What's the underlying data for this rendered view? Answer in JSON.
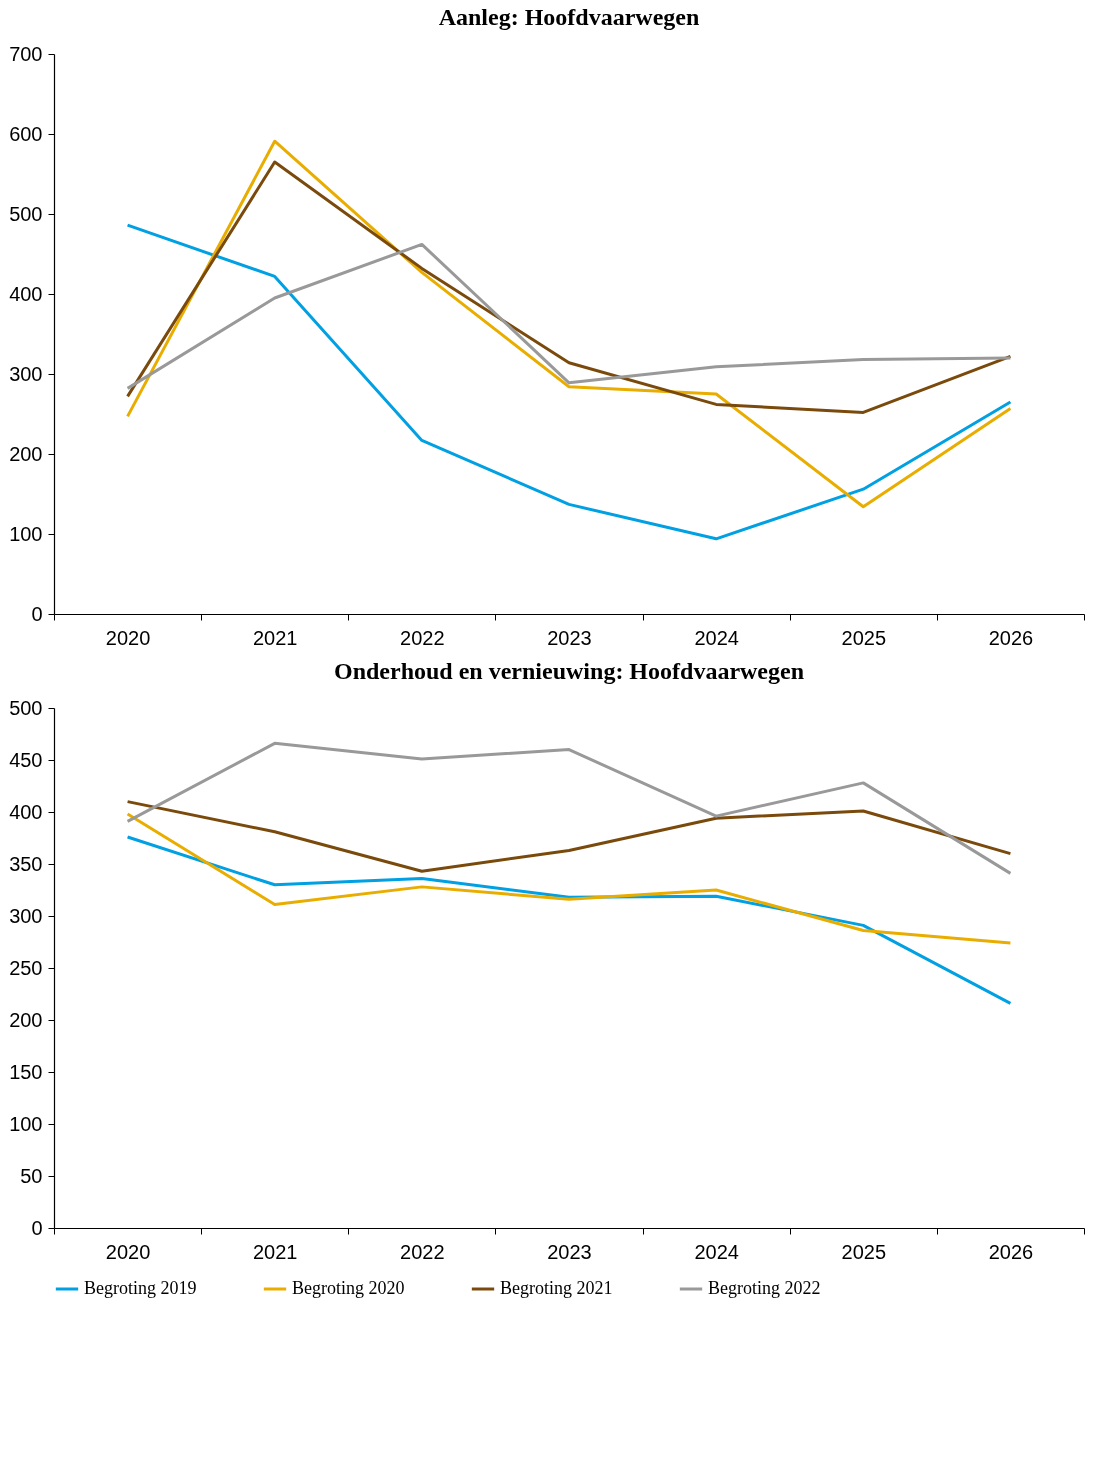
{
  "chart_data": [
    {
      "type": "line",
      "title": "Aanleg: Hoofdvaarwegen",
      "categories": [
        "2020",
        "2021",
        "2022",
        "2023",
        "2024",
        "2025",
        "2026"
      ],
      "ylim": [
        0,
        700
      ],
      "yticks": [
        0,
        100,
        200,
        300,
        400,
        500,
        600,
        700
      ],
      "grid": false,
      "legend": false,
      "series": [
        {
          "color": "#00a0e2",
          "values": [
            486,
            422,
            217,
            137,
            94,
            156,
            265
          ]
        },
        {
          "color": "#e9ad00",
          "values": [
            247,
            591,
            427,
            284,
            275,
            134,
            257
          ]
        },
        {
          "color": "#7a4a0c",
          "values": [
            272,
            565,
            432,
            314,
            262,
            252,
            322
          ]
        },
        {
          "color": "#999999",
          "values": [
            282,
            395,
            462,
            289,
            309,
            318,
            320
          ]
        }
      ]
    },
    {
      "type": "line",
      "title": "Onderhoud en vernieuwing: Hoofdvaarwegen",
      "categories": [
        "2020",
        "2021",
        "2022",
        "2023",
        "2024",
        "2025",
        "2026"
      ],
      "ylim": [
        0,
        500
      ],
      "yticks": [
        0,
        50,
        100,
        150,
        200,
        250,
        300,
        350,
        400,
        450,
        500
      ],
      "grid": false,
      "legend": "bottom",
      "series": [
        {
          "name": "Begroting 2019",
          "color": "#00a0e2",
          "values": [
            376,
            330,
            336,
            318,
            319,
            291,
            216
          ]
        },
        {
          "name": "Begroting 2020",
          "color": "#e9ad00",
          "values": [
            398,
            311,
            328,
            316,
            325,
            286,
            274
          ]
        },
        {
          "name": "Begroting 2021",
          "color": "#7a4a0c",
          "values": [
            410,
            381,
            343,
            363,
            394,
            401,
            360
          ]
        },
        {
          "name": "Begroting 2022",
          "color": "#999999",
          "values": [
            391,
            466,
            451,
            460,
            396,
            428,
            341
          ]
        }
      ]
    }
  ]
}
